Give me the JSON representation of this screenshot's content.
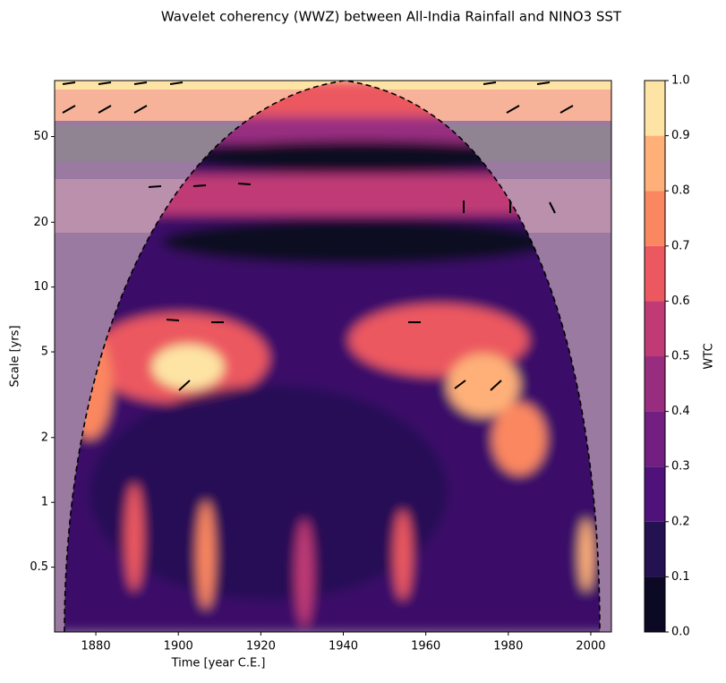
{
  "chart_data": {
    "type": "contour",
    "title": "Wavelet coherency (WWZ) between All-India Rainfall and NINO3 SST",
    "x_label": "Time [year C.E.]",
    "y_label": "Scale [yrs]",
    "xlim": [
      1870,
      2005
    ],
    "xticks": [
      1880,
      1900,
      1920,
      1940,
      1960,
      1980,
      2000
    ],
    "ylim": [
      0.25,
      91
    ],
    "y_scale": "log",
    "yticks": [
      0.5,
      1,
      2,
      5,
      10,
      20,
      50
    ],
    "colorbar": {
      "label": "WTC",
      "lim": [
        0,
        1
      ],
      "ticks": [
        {
          "value": 0,
          "label": "0.0"
        },
        0.1,
        0.2,
        0.3,
        0.4,
        0.5,
        0.6,
        0.7,
        0.8,
        0.9,
        {
          "value": 1,
          "label": "1.0"
        }
      ],
      "levels": [
        0,
        0.1,
        0.2,
        0.3,
        0.4,
        0.5,
        0.6,
        0.7,
        0.8,
        0.9,
        1
      ],
      "colors": [
        "#0b0924",
        "#231151",
        "#4f127b",
        "#721f81",
        "#982d80",
        "#c03a76",
        "#ec5860",
        "#fb8761",
        "#feb078",
        "#fde4a4"
      ]
    }
  }
}
